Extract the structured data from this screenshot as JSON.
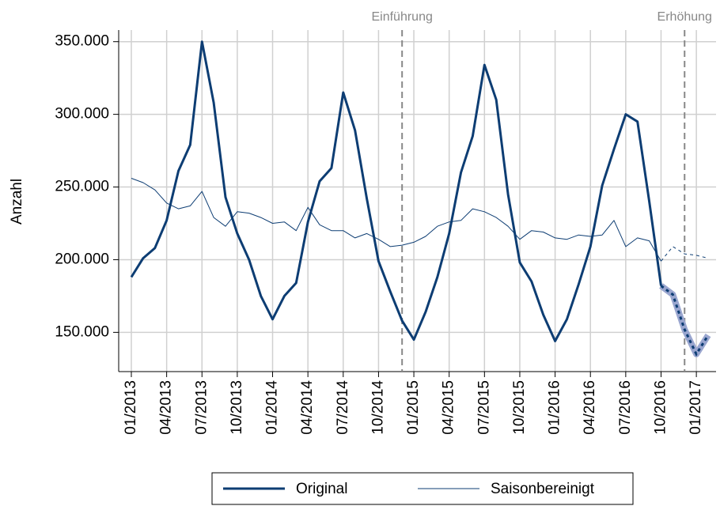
{
  "chart_data": {
    "type": "line",
    "y_label": "Anzahl",
    "categories": [
      "01/2013",
      null,
      null,
      "04/2013",
      null,
      null,
      "07/2013",
      null,
      null,
      "10/2013",
      null,
      null,
      "01/2014",
      null,
      null,
      "04/2014",
      null,
      null,
      "07/2014",
      null,
      null,
      "10/2014",
      null,
      null,
      "01/2015",
      null,
      null,
      "04/2015",
      null,
      null,
      "07/2015",
      null,
      null,
      "10/2015",
      null,
      null,
      "01/2016",
      null,
      null,
      "04/2016",
      null,
      null,
      "07/2016",
      null,
      null,
      "10/2016",
      null,
      null,
      "01/2017",
      null
    ],
    "series": [
      {
        "name": "Original",
        "color": "#0d3d73",
        "width": 3,
        "values": [
          188000,
          201000,
          208000,
          227000,
          261000,
          279000,
          350000,
          308000,
          243000,
          218000,
          200000,
          175000,
          159000,
          175000,
          184000,
          226000,
          254000,
          263000,
          315000,
          289000,
          242000,
          199000,
          178000,
          158000,
          145000,
          164000,
          188000,
          218000,
          260000,
          285000,
          334000,
          310000,
          245000,
          198000,
          185000,
          162000,
          144000,
          159000,
          183000,
          209000,
          251000,
          276000,
          300000,
          295000,
          240000,
          182000,
          null,
          null,
          null,
          null
        ],
        "forecast": [
          null,
          null,
          null,
          null,
          null,
          null,
          null,
          null,
          null,
          null,
          null,
          null,
          null,
          null,
          null,
          null,
          null,
          null,
          null,
          null,
          null,
          null,
          null,
          null,
          null,
          null,
          null,
          null,
          null,
          null,
          null,
          null,
          null,
          null,
          null,
          null,
          null,
          null,
          null,
          null,
          null,
          null,
          null,
          null,
          null,
          182000,
          176000,
          152000,
          135000,
          148000
        ]
      },
      {
        "name": "Saisonbereinigt",
        "color": "#0d3d73",
        "width": 1,
        "values": [
          256000,
          253000,
          248000,
          239000,
          235000,
          237000,
          247000,
          229000,
          223000,
          233000,
          232000,
          229000,
          225000,
          226000,
          220000,
          236000,
          224000,
          220000,
          220000,
          215000,
          218000,
          214000,
          209000,
          210000,
          212000,
          216000,
          223000,
          226000,
          227000,
          235000,
          233000,
          229000,
          223000,
          214000,
          220000,
          219000,
          215000,
          214000,
          217000,
          216000,
          217000,
          227000,
          209000,
          215000,
          213000,
          199000,
          null,
          null,
          null,
          null
        ],
        "forecast": [
          null,
          null,
          null,
          null,
          null,
          null,
          null,
          null,
          null,
          null,
          null,
          null,
          null,
          null,
          null,
          null,
          null,
          null,
          null,
          null,
          null,
          null,
          null,
          null,
          null,
          null,
          null,
          null,
          null,
          null,
          null,
          null,
          null,
          null,
          null,
          null,
          null,
          null,
          null,
          null,
          null,
          null,
          null,
          null,
          null,
          199000,
          209000,
          204000,
          203000,
          201000
        ]
      }
    ],
    "events": [
      {
        "label": "Einführung",
        "index": 23
      },
      {
        "label": "Erhöhung",
        "index": 47
      }
    ],
    "ylim": [
      123000,
      358000
    ],
    "yticks": [
      {
        "value": 150000,
        "label": "150.000"
      },
      {
        "value": 200000,
        "label": "200.000"
      },
      {
        "value": 250000,
        "label": "250.000"
      },
      {
        "value": 300000,
        "label": "300.000"
      },
      {
        "value": 350000,
        "label": "350.000"
      }
    ],
    "grid": true,
    "legend": "bottom"
  }
}
